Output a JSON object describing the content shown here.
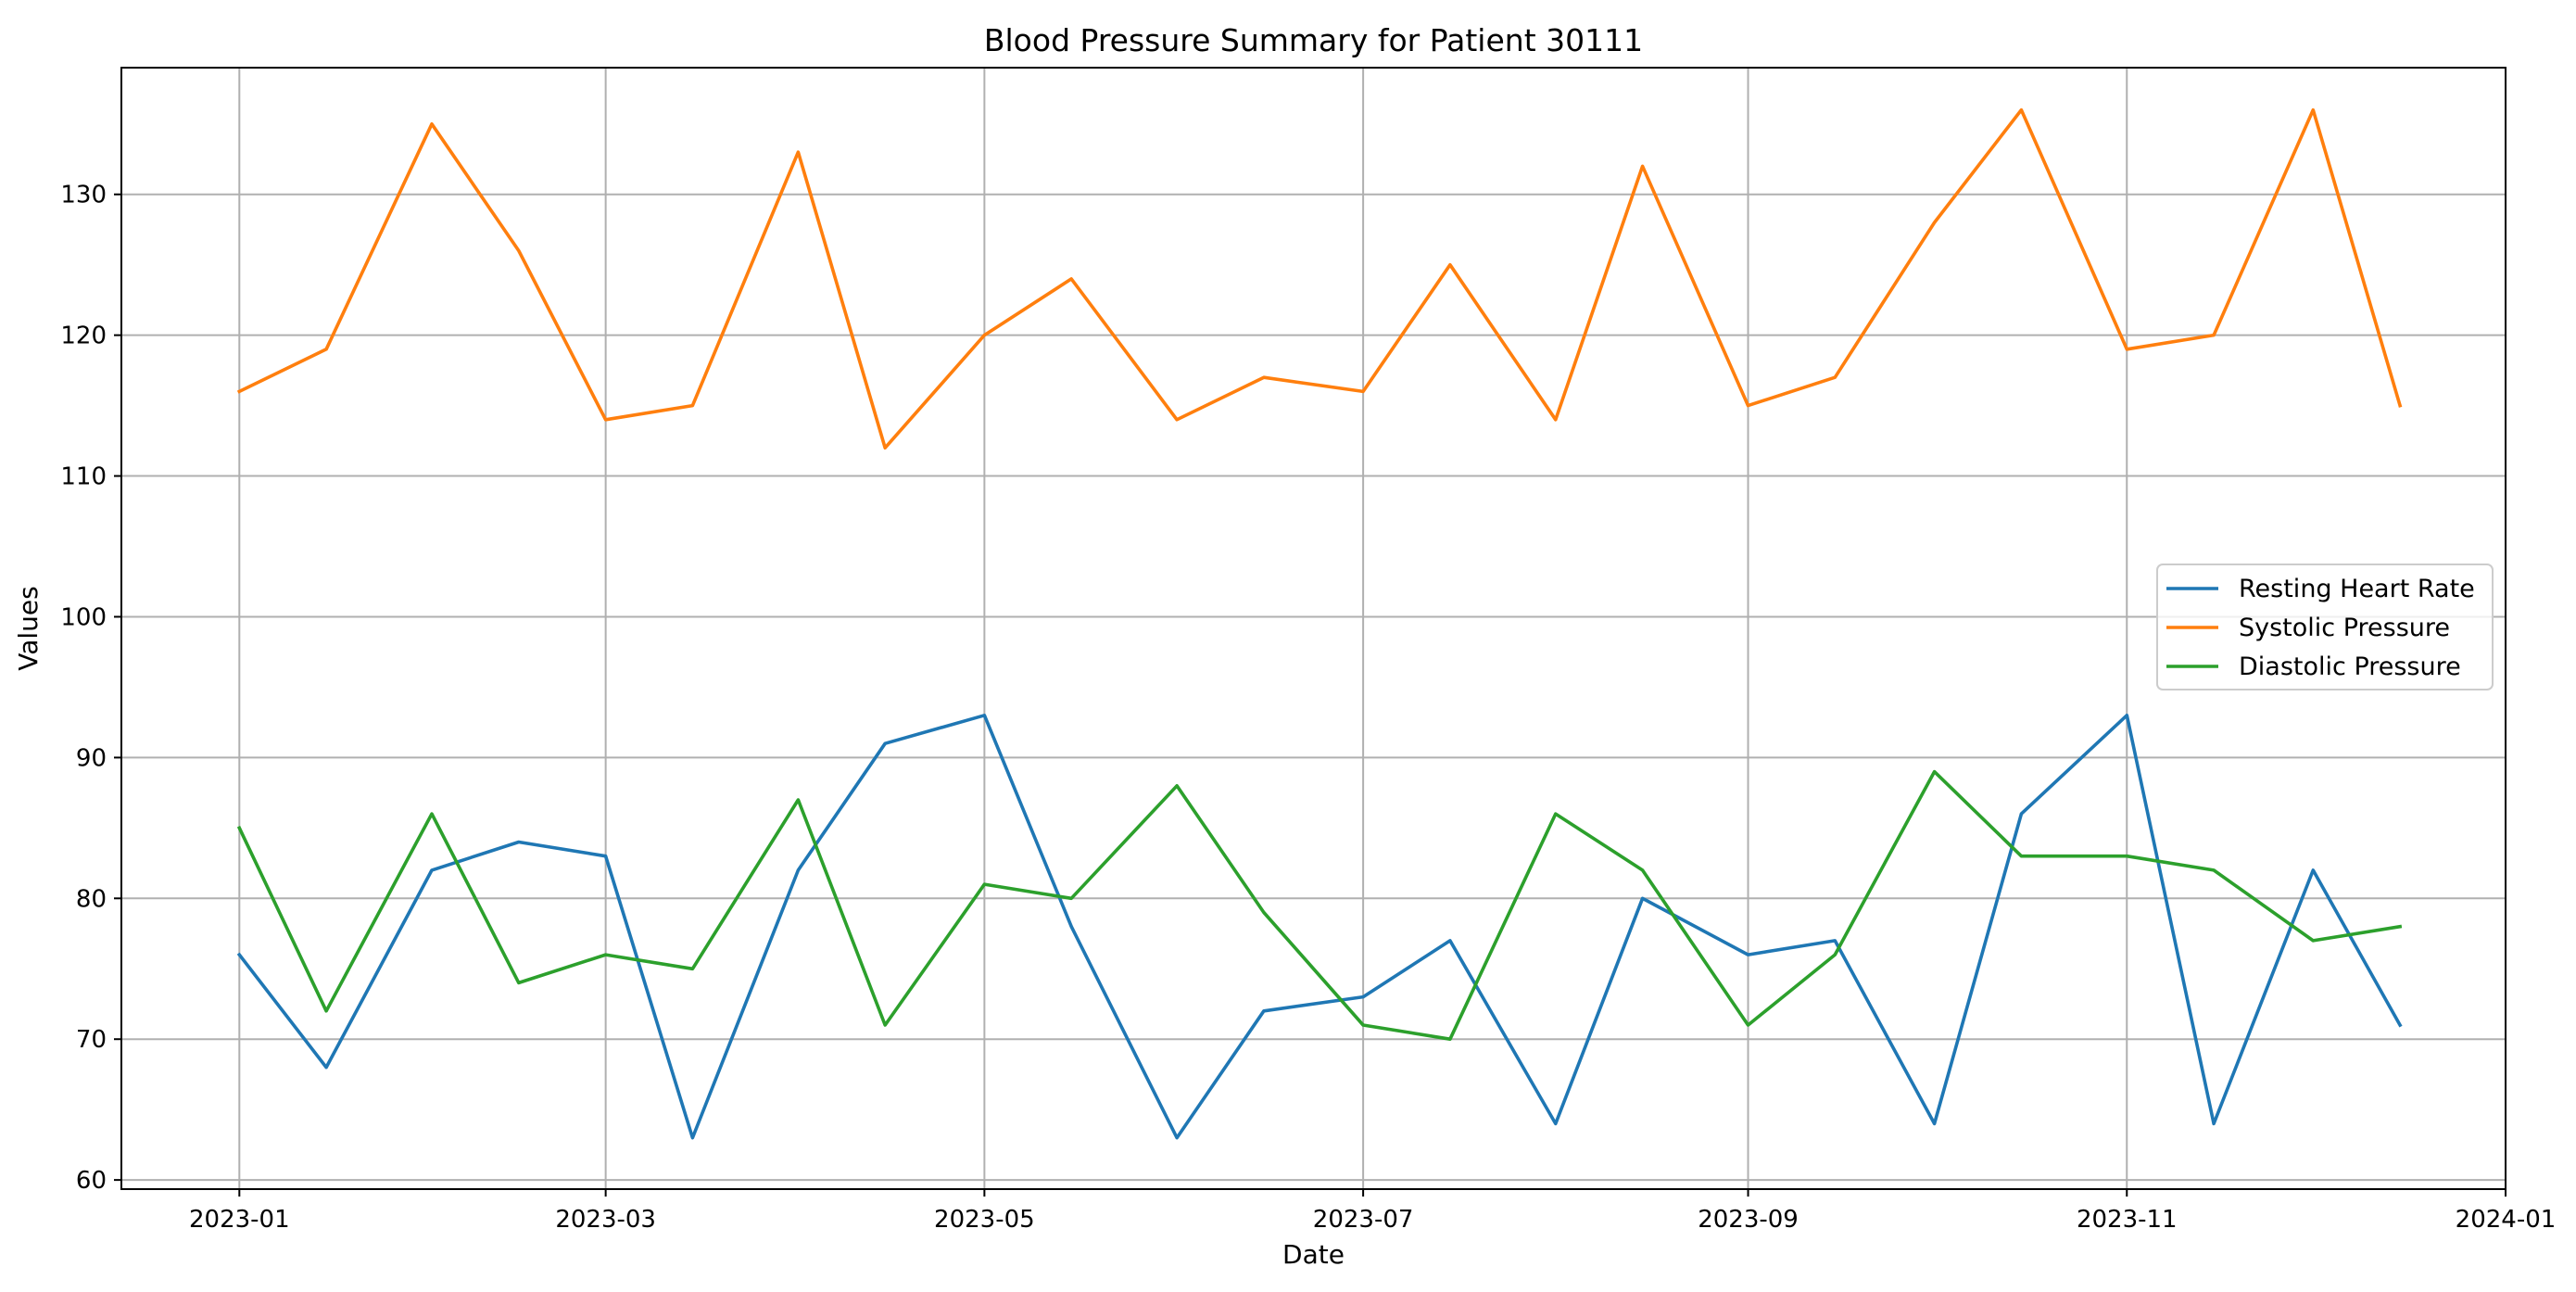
{
  "chart_data": {
    "type": "line",
    "title": "Blood Pressure Summary for Patient 30111",
    "xlabel": "Date",
    "ylabel": "Values",
    "x": [
      "2023-01-01",
      "2023-01-15",
      "2023-02-01",
      "2023-02-15",
      "2023-03-01",
      "2023-03-15",
      "2023-04-01",
      "2023-04-15",
      "2023-05-01",
      "2023-05-15",
      "2023-06-01",
      "2023-06-15",
      "2023-07-01",
      "2023-07-15",
      "2023-08-01",
      "2023-08-15",
      "2023-09-01",
      "2023-09-15",
      "2023-10-01",
      "2023-10-15",
      "2023-11-01",
      "2023-11-15",
      "2023-12-01",
      "2023-12-15"
    ],
    "series": [
      {
        "name": "Resting Heart Rate",
        "color": "#1f77b4",
        "values": [
          76,
          68,
          82,
          84,
          83,
          63,
          82,
          91,
          93,
          78,
          63,
          72,
          73,
          77,
          64,
          80,
          76,
          77,
          64,
          86,
          93,
          64,
          82,
          71
        ]
      },
      {
        "name": "Systolic Pressure",
        "color": "#ff7f0e",
        "values": [
          116,
          119,
          135,
          126,
          114,
          115,
          133,
          112,
          120,
          124,
          114,
          117,
          116,
          125,
          114,
          132,
          115,
          117,
          128,
          136,
          119,
          120,
          136,
          115
        ]
      },
      {
        "name": "Diastolic Pressure",
        "color": "#2ca02c",
        "values": [
          85,
          72,
          86,
          74,
          76,
          75,
          87,
          71,
          81,
          80,
          88,
          79,
          71,
          70,
          86,
          82,
          71,
          76,
          89,
          83,
          83,
          82,
          77,
          78
        ]
      }
    ],
    "xlim": [
      "2022-12-13",
      "2024-01-01"
    ],
    "ylim": [
      59.35,
      139.0
    ],
    "xticks": [
      "2023-01-01",
      "2023-03-01",
      "2023-05-01",
      "2023-07-01",
      "2023-09-01",
      "2023-11-01",
      "2024-01-01"
    ],
    "xtick_labels": [
      "2023-01",
      "2023-03",
      "2023-05",
      "2023-07",
      "2023-09",
      "2023-11",
      "2024-01"
    ],
    "yticks": [
      60,
      70,
      80,
      90,
      100,
      110,
      120,
      130
    ],
    "grid": true,
    "legend_position": "center-right"
  }
}
